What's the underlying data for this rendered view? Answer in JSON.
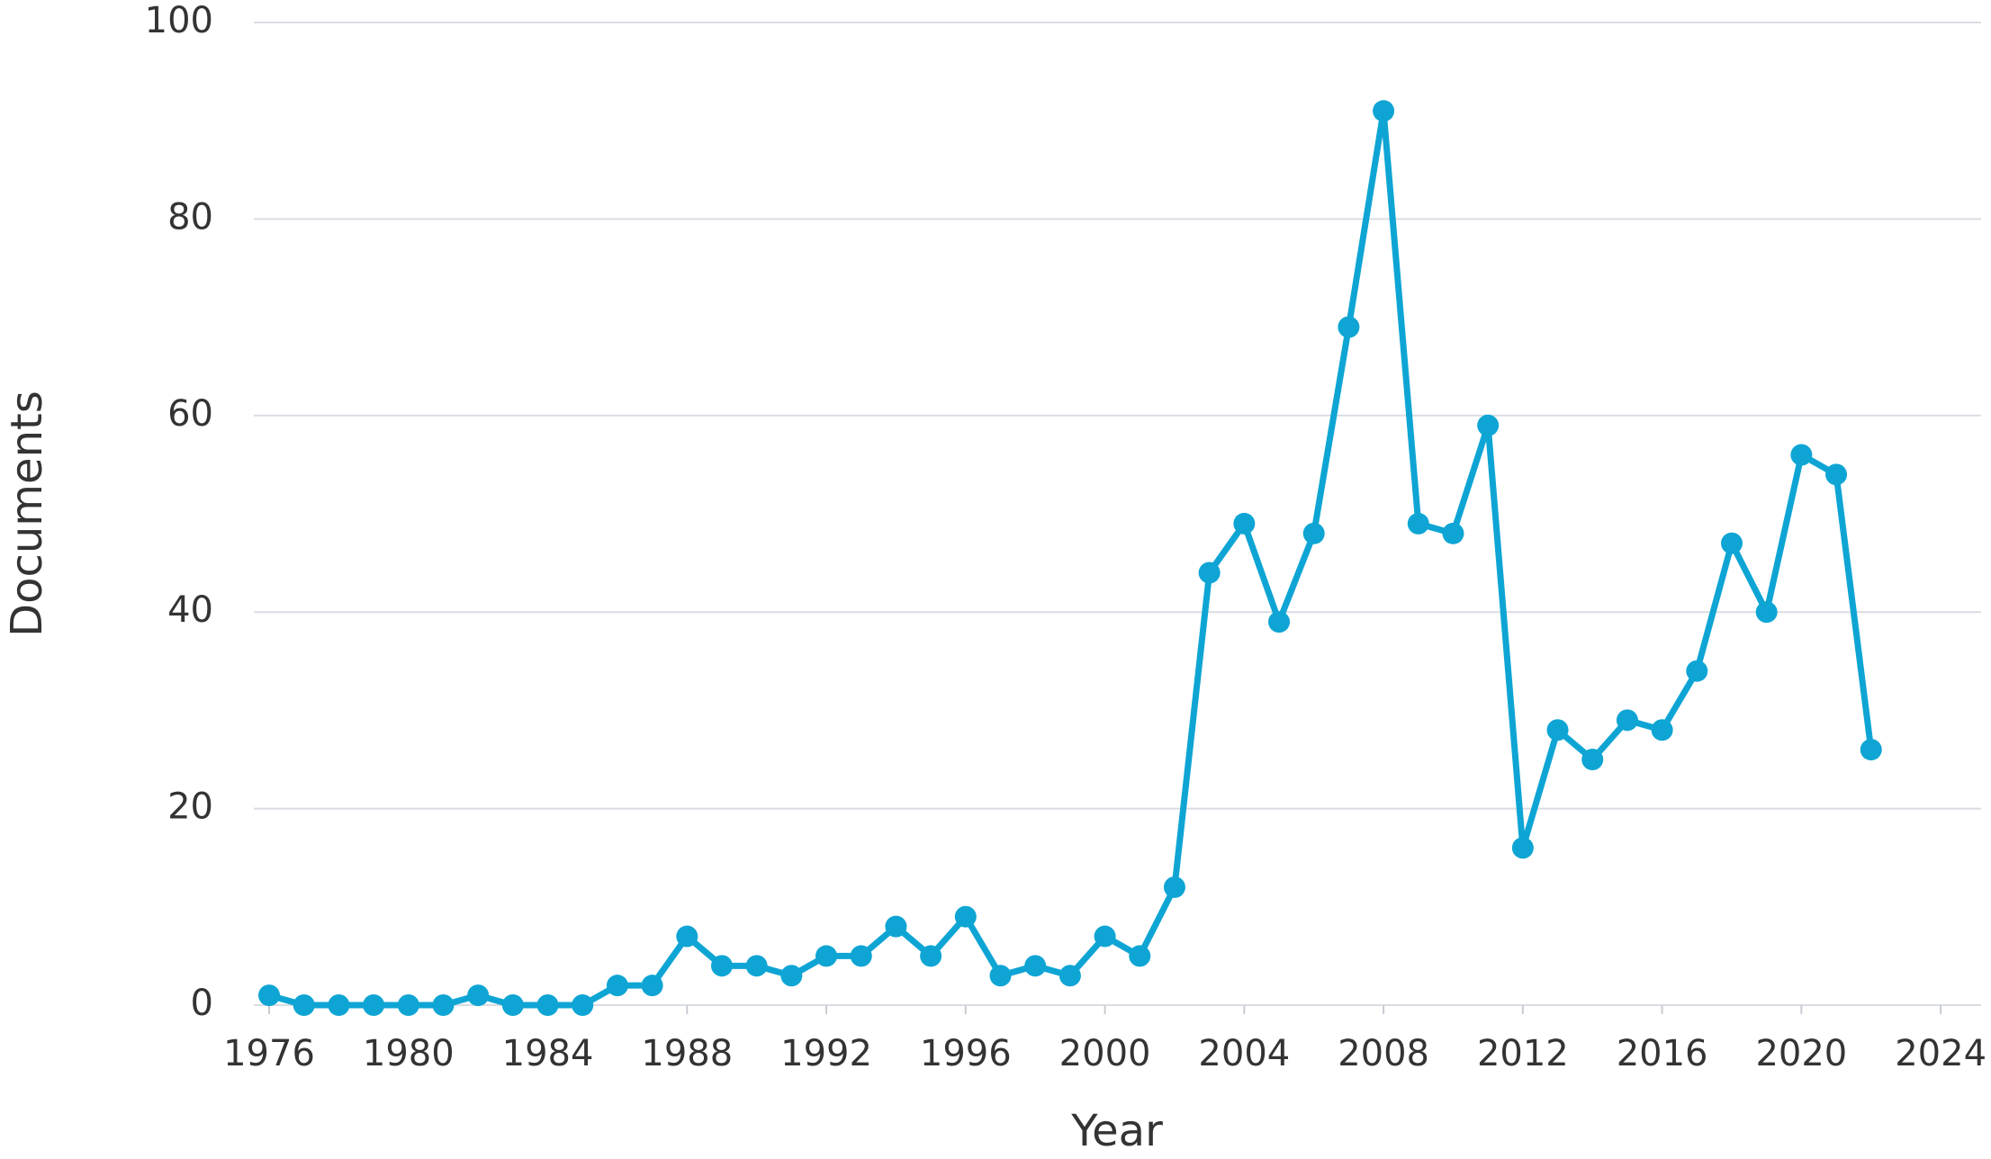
{
  "chart_data": {
    "type": "line",
    "x_label": "Year",
    "y_label": "Documents",
    "x": [
      1976,
      1977,
      1978,
      1979,
      1980,
      1981,
      1982,
      1983,
      1984,
      1985,
      1986,
      1987,
      1988,
      1989,
      1990,
      1991,
      1992,
      1993,
      1994,
      1995,
      1996,
      1997,
      1998,
      1999,
      2000,
      2001,
      2002,
      2003,
      2004,
      2005,
      2006,
      2007,
      2008,
      2009,
      2010,
      2011,
      2012,
      2013,
      2014,
      2015,
      2016,
      2017,
      2018,
      2019,
      2020,
      2021,
      2022
    ],
    "series": [
      {
        "color": "#0ea5d4",
        "values": [
          1,
          0,
          0,
          0,
          0,
          0,
          1,
          0,
          0,
          0,
          2,
          2,
          7,
          4,
          4,
          3,
          5,
          5,
          8,
          5,
          9,
          3,
          4,
          3,
          7,
          5,
          12,
          44,
          49,
          39,
          48,
          69,
          91,
          49,
          48,
          59,
          16,
          28,
          25,
          29,
          28,
          34,
          47,
          40,
          56,
          54,
          26
        ]
      }
    ],
    "xlim": [
      1975.56,
      2025.16
    ],
    "xticks": [
      1976,
      1980,
      1984,
      1988,
      1992,
      1996,
      2000,
      2004,
      2008,
      2012,
      2016,
      2020,
      2024
    ],
    "ylim": [
      0,
      100
    ],
    "yticks": [
      0,
      20,
      40,
      60,
      80,
      100
    ],
    "grid": true
  }
}
